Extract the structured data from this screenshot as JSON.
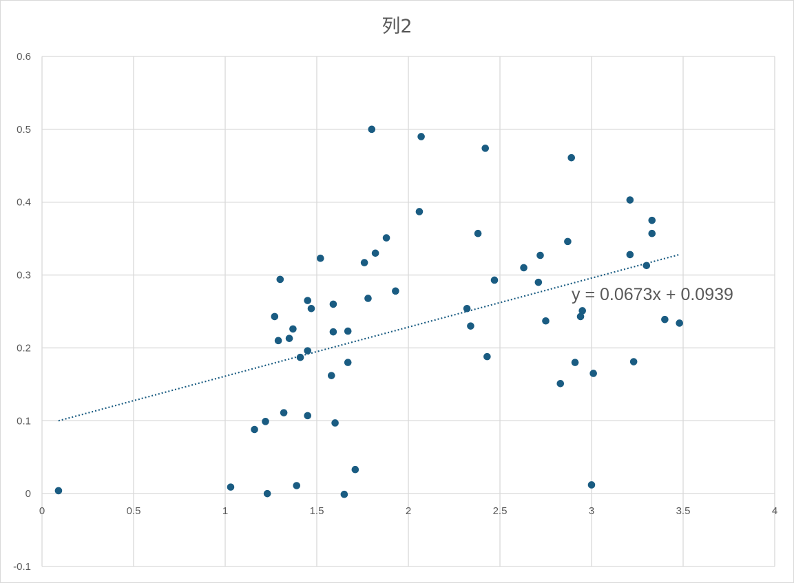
{
  "chart_data": {
    "type": "scatter",
    "title": "列2",
    "xlabel": "",
    "ylabel": "",
    "xlim": [
      0,
      4
    ],
    "ylim": [
      -0.1,
      0.6
    ],
    "x_ticks": [
      0,
      0.5,
      1,
      1.5,
      2,
      2.5,
      3,
      3.5,
      4
    ],
    "x_tick_labels": [
      "0",
      "0.5",
      "1",
      "1.5",
      "2",
      "2.5",
      "3",
      "3.5",
      "4"
    ],
    "y_ticks": [
      -0.1,
      0,
      0.1,
      0.2,
      0.3,
      0.4,
      0.5,
      0.6
    ],
    "y_tick_labels": [
      "-0.1",
      "0",
      "0.1",
      "0.2",
      "0.3",
      "0.4",
      "0.5",
      "0.6"
    ],
    "grid": true,
    "legend": "none",
    "marker_color": "#1a5c82",
    "trendline_color": "#1a5c82",
    "series": [
      {
        "points": [
          [
            0.09,
            0.004
          ],
          [
            1.03,
            0.009
          ],
          [
            1.16,
            0.088
          ],
          [
            1.22,
            0.099
          ],
          [
            1.23,
            0.0
          ],
          [
            1.27,
            0.243
          ],
          [
            1.29,
            0.21
          ],
          [
            1.3,
            0.294
          ],
          [
            1.32,
            0.111
          ],
          [
            1.35,
            0.213
          ],
          [
            1.37,
            0.226
          ],
          [
            1.39,
            0.011
          ],
          [
            1.41,
            0.187
          ],
          [
            1.45,
            0.265
          ],
          [
            1.45,
            0.196
          ],
          [
            1.45,
            0.107
          ],
          [
            1.47,
            0.254
          ],
          [
            1.52,
            0.323
          ],
          [
            1.58,
            0.162
          ],
          [
            1.59,
            0.26
          ],
          [
            1.59,
            0.222
          ],
          [
            1.6,
            0.097
          ],
          [
            1.65,
            -0.001
          ],
          [
            1.67,
            0.223
          ],
          [
            1.67,
            0.18
          ],
          [
            1.71,
            0.033
          ],
          [
            1.76,
            0.317
          ],
          [
            1.78,
            0.268
          ],
          [
            1.8,
            0.5
          ],
          [
            1.82,
            0.33
          ],
          [
            1.88,
            0.351
          ],
          [
            1.93,
            0.278
          ],
          [
            2.06,
            0.387
          ],
          [
            2.07,
            0.49
          ],
          [
            2.32,
            0.254
          ],
          [
            2.34,
            0.23
          ],
          [
            2.38,
            0.357
          ],
          [
            2.42,
            0.474
          ],
          [
            2.43,
            0.188
          ],
          [
            2.47,
            0.293
          ],
          [
            2.63,
            0.31
          ],
          [
            2.71,
            0.29
          ],
          [
            2.72,
            0.327
          ],
          [
            2.75,
            0.237
          ],
          [
            2.83,
            0.151
          ],
          [
            2.87,
            0.346
          ],
          [
            2.89,
            0.461
          ],
          [
            2.91,
            0.18
          ],
          [
            2.94,
            0.243
          ],
          [
            2.95,
            0.251
          ],
          [
            3.0,
            0.012
          ],
          [
            3.01,
            0.165
          ],
          [
            3.21,
            0.403
          ],
          [
            3.21,
            0.328
          ],
          [
            3.23,
            0.181
          ],
          [
            3.3,
            0.313
          ],
          [
            3.33,
            0.375
          ],
          [
            3.33,
            0.357
          ],
          [
            3.4,
            0.239
          ],
          [
            3.48,
            0.234
          ]
        ]
      }
    ],
    "trendline": {
      "type": "linear",
      "slope": 0.0673,
      "intercept": 0.0939,
      "x_range": [
        0.09,
        3.48
      ],
      "label": "y = 0.0673x + 0.0939"
    }
  }
}
